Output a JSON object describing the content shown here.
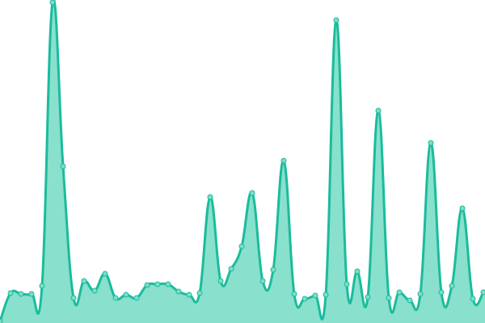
{
  "chart_data": {
    "type": "area",
    "smooth": true,
    "grid": false,
    "axes_visible": false,
    "title": "",
    "xlabel": "",
    "ylabel": "",
    "ylim": [
      0,
      400
    ],
    "x": [
      0,
      1,
      2,
      3,
      4,
      5,
      6,
      7,
      8,
      9,
      10,
      11,
      12,
      13,
      14,
      15,
      16,
      17,
      18,
      19,
      20,
      21,
      22,
      23,
      24,
      25,
      26,
      27,
      28,
      29,
      30,
      31,
      32,
      33,
      34,
      35,
      36,
      37,
      38,
      39,
      40,
      41,
      42,
      43,
      44,
      45,
      46
    ],
    "values": [
      2,
      37,
      36,
      36,
      46,
      397,
      194,
      31,
      52,
      40,
      61,
      31,
      35,
      31,
      47,
      48,
      48,
      39,
      35,
      37,
      156,
      52,
      67,
      95,
      161,
      52,
      66,
      201,
      36,
      30,
      34,
      35,
      375,
      48,
      64,
      32,
      263,
      31,
      38,
      28,
      36,
      223,
      38,
      46,
      142,
      30,
      38
    ],
    "colors": {
      "line": "#1abc9c",
      "fill": "#89e0cd",
      "marker": "#7fdcc6"
    }
  }
}
